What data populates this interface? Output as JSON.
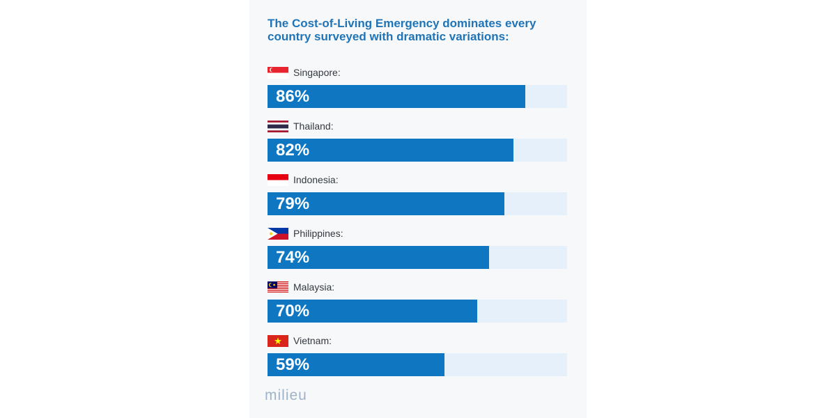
{
  "chart_data": {
    "type": "bar",
    "orientation": "horizontal",
    "title": "The Cost-of-Living Emergency dominates every country surveyed with dramatic variations:",
    "categories": [
      "Singapore:",
      "Thailand:",
      "Indonesia:",
      "Philippines:",
      "Malaysia:",
      "Vietnam:"
    ],
    "values": [
      86,
      82,
      79,
      74,
      70,
      59
    ],
    "value_labels": [
      "86%",
      "82%",
      "79%",
      "74%",
      "70%",
      "59%"
    ],
    "xlim": [
      0,
      100
    ],
    "xlabel": "",
    "ylabel": "",
    "grid": false,
    "flags": [
      "singapore-flag",
      "thailand-flag",
      "indonesia-flag",
      "philippines-flag",
      "malaysia-flag",
      "vietnam-flag"
    ]
  },
  "branding": {
    "logo_text": "milieu"
  },
  "colors": {
    "title": "#1f74b7",
    "bar_fill": "#0f76c1",
    "bar_track": "#e6f0fa",
    "logo": "#9fb3c8"
  }
}
